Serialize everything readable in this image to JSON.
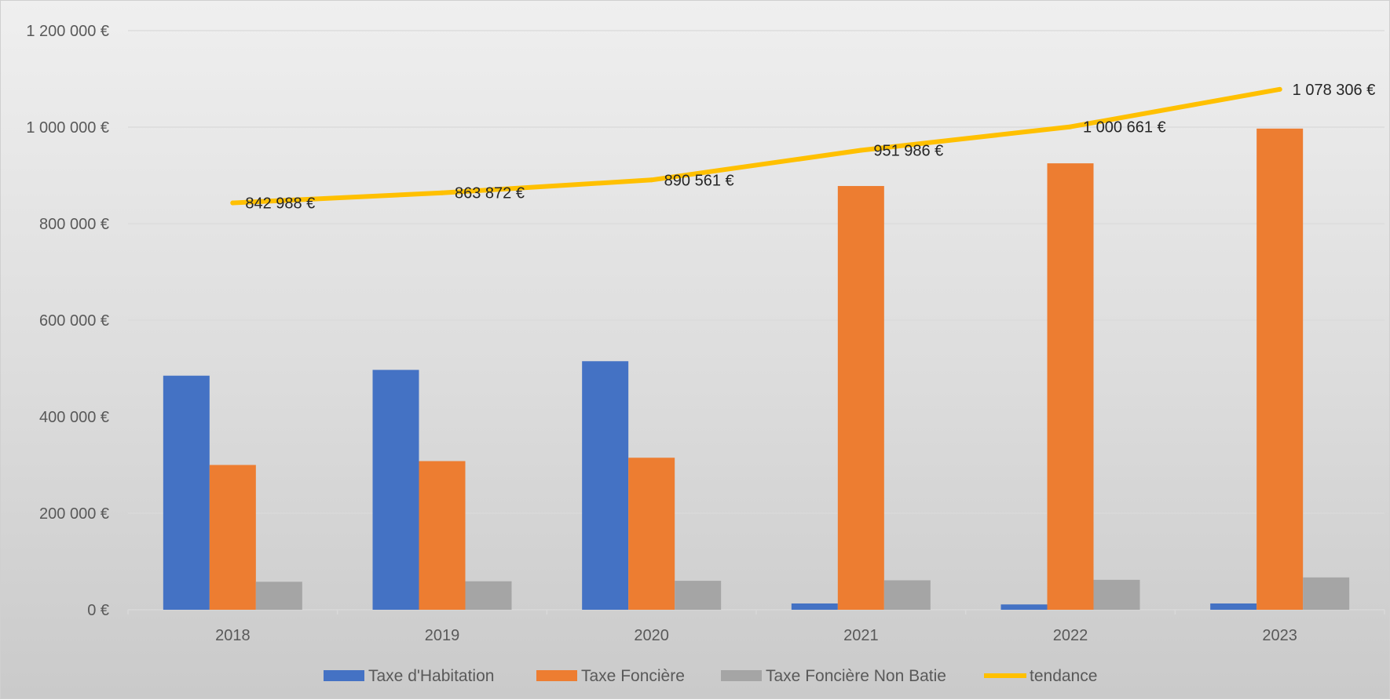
{
  "chart_data": {
    "type": "bar",
    "title": "",
    "xlabel": "",
    "ylabel": "",
    "categories": [
      "2018",
      "2019",
      "2020",
      "2021",
      "2022",
      "2023"
    ],
    "ylim": [
      0,
      1200000
    ],
    "y_ticks": [
      0,
      200000,
      400000,
      600000,
      800000,
      1000000,
      1200000
    ],
    "y_tick_labels": [
      "0 €",
      "200 000 €",
      "400 000 €",
      "600 000 €",
      "800 000 €",
      "1 000 000 €",
      "1 200 000 €"
    ],
    "grid": true,
    "legend_position": "bottom",
    "series": [
      {
        "name": "Taxe d'Habitation",
        "kind": "bar",
        "color": "#4472C4",
        "values": [
          485000,
          497000,
          515000,
          13000,
          11000,
          13000
        ]
      },
      {
        "name": "Taxe Foncière",
        "kind": "bar",
        "color": "#ED7D31",
        "values": [
          300000,
          308000,
          315000,
          878000,
          925000,
          997000
        ]
      },
      {
        "name": "Taxe Foncière Non Batie",
        "kind": "bar",
        "color": "#A5A5A5",
        "values": [
          58000,
          59000,
          60000,
          61000,
          62000,
          67000
        ]
      },
      {
        "name": "tendance",
        "kind": "line",
        "color": "#FFC000",
        "values": [
          842988,
          863872,
          890561,
          951986,
          1000661,
          1078306
        ],
        "labels": [
          "842 988 €",
          "863 872 €",
          "890 561 €",
          "951 986 €",
          "1 000 661 €",
          "1 078 306 €"
        ]
      }
    ]
  }
}
